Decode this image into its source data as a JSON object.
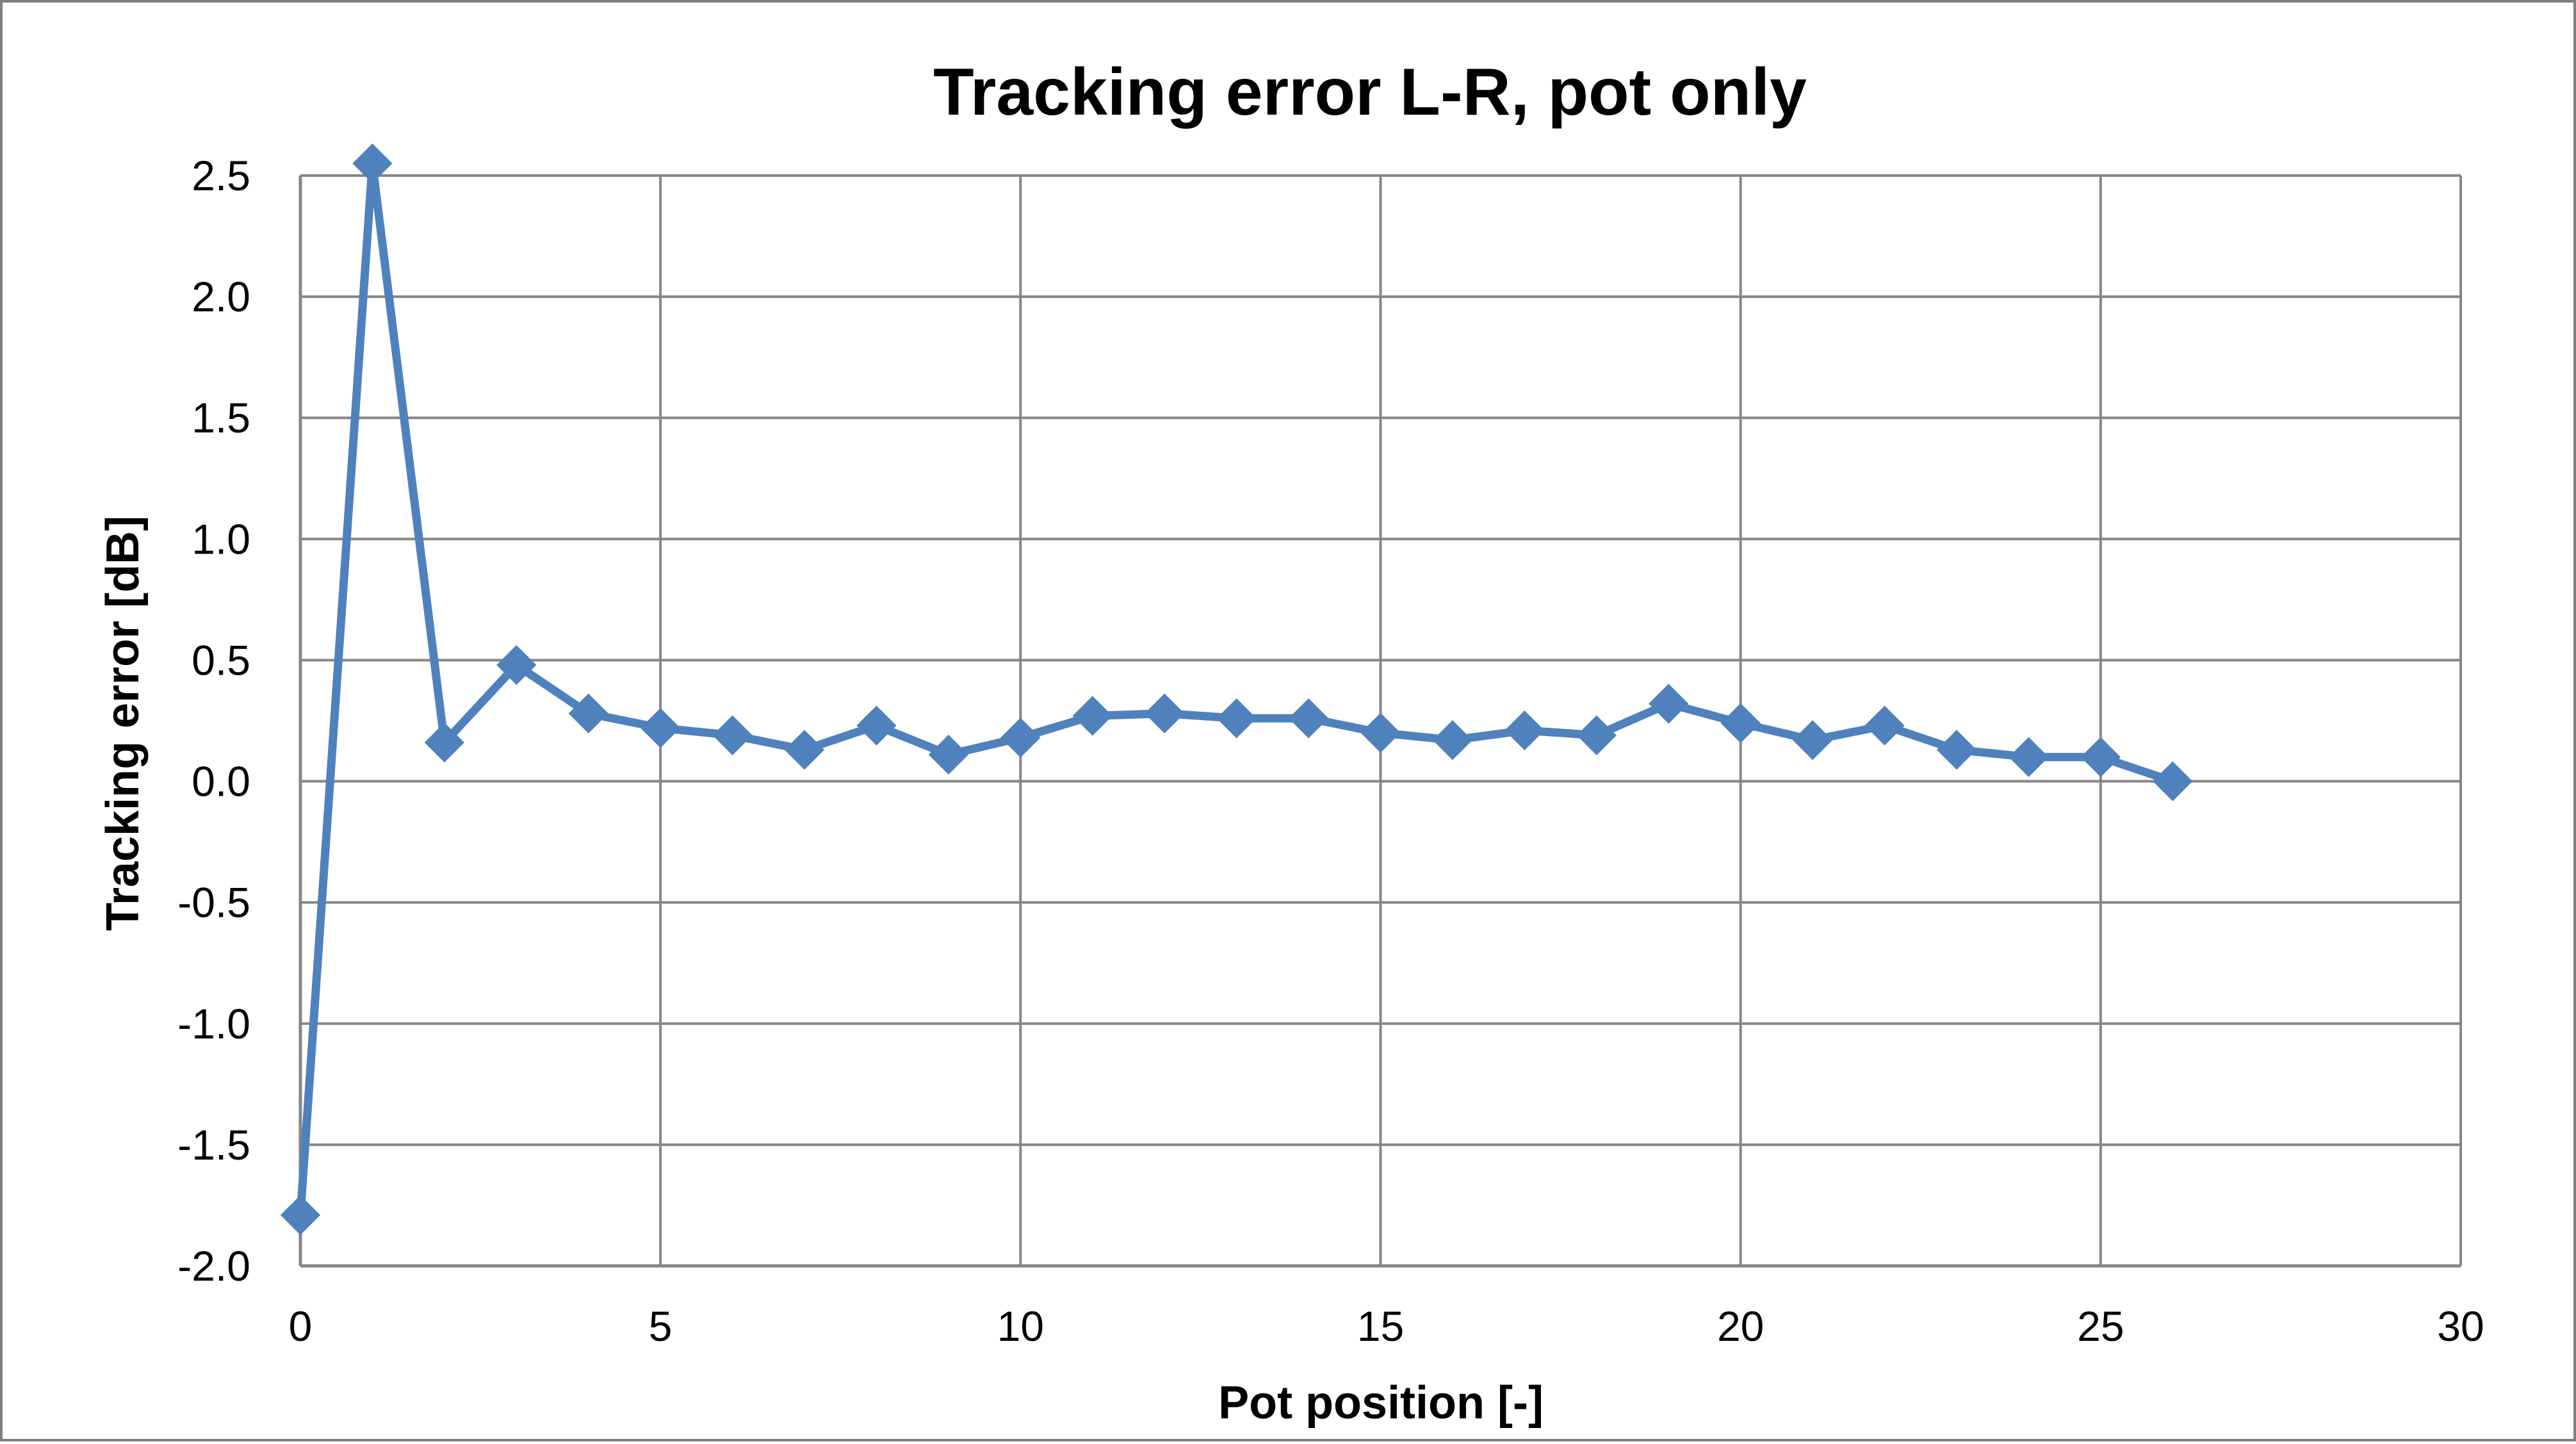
{
  "chart_data": {
    "type": "line",
    "title": "Tracking error L-R, pot only",
    "xlabel": "Pot position [-]",
    "ylabel": "Tracking error [dB]",
    "xlim": [
      0,
      30
    ],
    "ylim": [
      -2.0,
      2.5
    ],
    "x_ticks": [
      0,
      5,
      10,
      15,
      20,
      25,
      30
    ],
    "x_tick_labels": [
      "0",
      "5",
      "10",
      "15",
      "20",
      "25",
      "30"
    ],
    "y_ticks": [
      -2.0,
      -1.5,
      -1.0,
      -0.5,
      0.0,
      0.5,
      1.0,
      1.5,
      2.0,
      2.5
    ],
    "y_tick_labels": [
      "-2.0",
      "-1.5",
      "-1.0",
      "-0.5",
      "0.0",
      "0.5",
      "1.0",
      "1.5",
      "2.0",
      "2.5"
    ],
    "grid": true,
    "legend": "none",
    "marker": "diamond",
    "series": [
      {
        "color": "#4f81bd",
        "x": [
          0,
          1,
          2,
          3,
          4,
          5,
          6,
          7,
          8,
          9,
          10,
          11,
          12,
          13,
          14,
          15,
          16,
          17,
          18,
          19,
          20,
          21,
          22,
          23,
          24,
          25,
          26
        ],
        "y": [
          -1.79,
          2.55,
          0.16,
          0.48,
          0.28,
          0.22,
          0.19,
          0.13,
          0.23,
          0.11,
          0.18,
          0.27,
          0.28,
          0.26,
          0.26,
          0.2,
          0.17,
          0.21,
          0.19,
          0.32,
          0.24,
          0.17,
          0.23,
          0.13,
          0.1,
          0.1,
          0.0
        ]
      }
    ]
  }
}
